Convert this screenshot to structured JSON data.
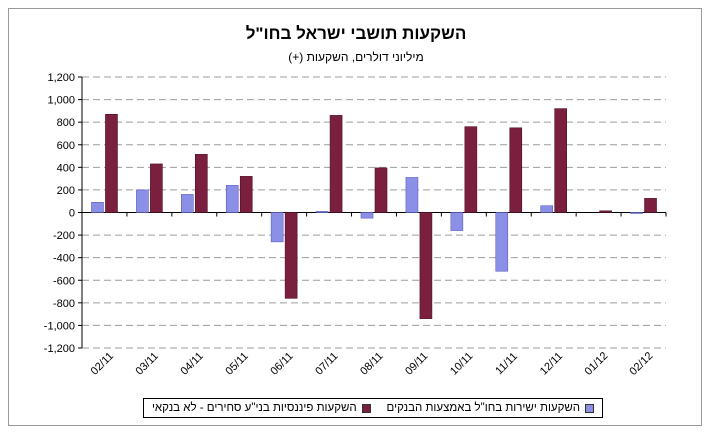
{
  "chart_data": {
    "type": "bar",
    "title": "השקעות תושבי ישראל בחו\"ל",
    "subtitle": "מיליוני דולרים, השקעות (+)",
    "categories": [
      "02/11",
      "03/11",
      "04/11",
      "05/11",
      "06/11",
      "07/11",
      "08/11",
      "09/11",
      "10/11",
      "11/11",
      "12/11",
      "01/12",
      "02/12"
    ],
    "series": [
      {
        "name": "השקעות ישירות בחו\"ל באמצעות הבנקים",
        "color": "#8b8fe6",
        "values": [
          90,
          200,
          160,
          240,
          -260,
          10,
          -50,
          310,
          -160,
          -520,
          60,
          0,
          -5
        ]
      },
      {
        "name": "השקעות פיננסיות בני\"ע סחירים - לא בנקאי",
        "color": "#7a1f3d",
        "values": [
          870,
          430,
          515,
          320,
          -760,
          860,
          395,
          -940,
          760,
          750,
          920,
          15,
          125
        ]
      }
    ],
    "ylim": [
      -1200,
      1200
    ],
    "yticks": [
      "1,200",
      "1,000",
      "800",
      "600",
      "400",
      "200",
      "0",
      "-200",
      "-400",
      "-600",
      "-800",
      "-1,000",
      "-1,200"
    ],
    "grid": true,
    "legend_position": "bottom"
  }
}
